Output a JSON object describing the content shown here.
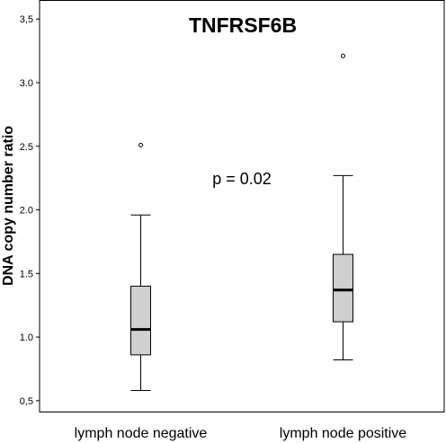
{
  "chart_data": {
    "type": "box",
    "title": "TNFRSF6B",
    "ylabel": "DNA copy number ratio",
    "xlabel": "",
    "ylim": [
      0.4,
      3.65
    ],
    "yticks": [
      {
        "value": 0.5,
        "label": "0,5"
      },
      {
        "value": 1.0,
        "label": "1.0"
      },
      {
        "value": 1.5,
        "label": "1.5"
      },
      {
        "value": 2.0,
        "label": "2.0"
      },
      {
        "value": 2.5,
        "label": "2.5"
      },
      {
        "value": 3.0,
        "label": "3.0"
      },
      {
        "value": 3.5,
        "label": "3,5"
      }
    ],
    "categories": [
      "lymph node negative",
      "lymph node positive"
    ],
    "boxes": [
      {
        "category": "lymph node negative",
        "whisker_low": 0.58,
        "q1": 0.86,
        "median": 1.06,
        "q3": 1.4,
        "whisker_high": 1.96,
        "outliers": [
          2.51
        ]
      },
      {
        "category": "lymph node positive",
        "whisker_low": 0.82,
        "q1": 1.12,
        "median": 1.37,
        "q3": 1.65,
        "whisker_high": 2.27,
        "outliers": [
          3.21
        ]
      }
    ],
    "annotations": [
      {
        "text": "p = 0.02",
        "x": 0.5,
        "y": 2.2
      }
    ],
    "colors": {
      "box_fill": "#d0d0d0",
      "stroke": "#000000",
      "median": "#000000"
    },
    "grid": false
  }
}
